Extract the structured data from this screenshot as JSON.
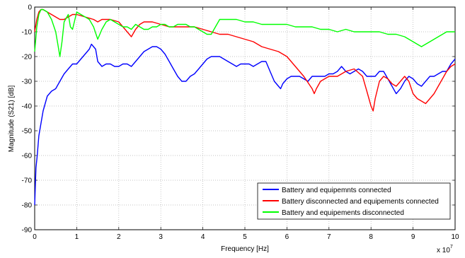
{
  "chart_data": {
    "type": "line",
    "xlabel": "Frequency [Hz]",
    "ylabel": "Magnitude (S21) [dB]",
    "x_multiplier_base": "x 10",
    "x_multiplier_exp": "7",
    "xlim": [
      0,
      10
    ],
    "ylim": [
      -90,
      0
    ],
    "x_ticks": [
      "0",
      "1",
      "2",
      "3",
      "4",
      "5",
      "6",
      "7",
      "8",
      "9",
      "10"
    ],
    "y_ticks": [
      "0",
      "-10",
      "-20",
      "-30",
      "-40",
      "-50",
      "-60",
      "-70",
      "-80",
      "-90"
    ],
    "grid": true,
    "legend_position": "bottom-right",
    "series": [
      {
        "name": "Battery and equipemnts connected",
        "color": "#0000ff",
        "x": [
          0,
          0.03,
          0.06,
          0.1,
          0.15,
          0.2,
          0.3,
          0.4,
          0.5,
          0.6,
          0.7,
          0.8,
          0.9,
          1.0,
          1.1,
          1.2,
          1.3,
          1.35,
          1.45,
          1.5,
          1.6,
          1.7,
          1.8,
          1.9,
          2.0,
          2.1,
          2.2,
          2.3,
          2.4,
          2.5,
          2.6,
          2.7,
          2.8,
          2.9,
          3.0,
          3.1,
          3.2,
          3.3,
          3.4,
          3.5,
          3.6,
          3.7,
          3.8,
          3.9,
          4.0,
          4.1,
          4.2,
          4.3,
          4.4,
          4.5,
          4.6,
          4.7,
          4.8,
          4.9,
          5.0,
          5.1,
          5.2,
          5.3,
          5.4,
          5.5,
          5.6,
          5.7,
          5.8,
          5.85,
          5.9,
          6.0,
          6.1,
          6.2,
          6.3,
          6.4,
          6.5,
          6.6,
          6.7,
          6.8,
          6.9,
          7.0,
          7.1,
          7.2,
          7.3,
          7.4,
          7.5,
          7.6,
          7.7,
          7.8,
          7.9,
          8.0,
          8.1,
          8.2,
          8.3,
          8.4,
          8.5,
          8.6,
          8.7,
          8.8,
          8.9,
          9.0,
          9.1,
          9.2,
          9.3,
          9.4,
          9.5,
          9.6,
          9.7,
          9.8,
          9.9,
          10.0
        ],
        "y": [
          -80,
          -65,
          -60,
          -52,
          -47,
          -42,
          -36,
          -34,
          -33,
          -30,
          -27,
          -25,
          -23,
          -23,
          -21,
          -19,
          -17,
          -15,
          -17,
          -22,
          -24,
          -23,
          -23,
          -24,
          -24,
          -23,
          -23,
          -24,
          -22,
          -20,
          -18,
          -17,
          -16,
          -16,
          -17,
          -19,
          -22,
          -25,
          -28,
          -30,
          -30,
          -28,
          -27,
          -25,
          -23,
          -21,
          -20,
          -20,
          -20,
          -21,
          -22,
          -23,
          -24,
          -23,
          -23,
          -23,
          -24,
          -23,
          -22,
          -22,
          -26,
          -30,
          -32,
          -33,
          -31,
          -29,
          -28,
          -28,
          -28,
          -29,
          -30,
          -28,
          -28,
          -28,
          -28,
          -27,
          -27,
          -26,
          -24,
          -26,
          -27,
          -26,
          -25,
          -26,
          -28,
          -28,
          -28,
          -26,
          -26,
          -29,
          -32,
          -35,
          -33,
          -30,
          -28,
          -29,
          -31,
          -32,
          -30,
          -28,
          -28,
          -27,
          -26,
          -26,
          -23,
          -21
        ]
      },
      {
        "name": "Battery disconnected and equipements connected",
        "color": "#ff0000",
        "x": [
          0,
          0.05,
          0.1,
          0.15,
          0.2,
          0.3,
          0.4,
          0.5,
          0.6,
          0.7,
          0.8,
          0.9,
          1.0,
          1.2,
          1.4,
          1.5,
          1.6,
          1.8,
          2.0,
          2.1,
          2.2,
          2.3,
          2.4,
          2.5,
          2.6,
          2.8,
          3.0,
          3.2,
          3.4,
          3.6,
          3.8,
          4.0,
          4.2,
          4.4,
          4.6,
          4.8,
          5.0,
          5.2,
          5.4,
          5.6,
          5.8,
          6.0,
          6.2,
          6.4,
          6.6,
          6.65,
          6.7,
          6.8,
          7.0,
          7.2,
          7.4,
          7.6,
          7.8,
          7.9,
          8.0,
          8.05,
          8.1,
          8.2,
          8.3,
          8.4,
          8.5,
          8.6,
          8.7,
          8.8,
          8.9,
          9.0,
          9.1,
          9.2,
          9.3,
          9.4,
          9.5,
          9.6,
          9.7,
          9.8,
          9.9,
          10.0
        ],
        "y": [
          -10,
          -5,
          -2,
          -1,
          -1,
          -2,
          -3,
          -4,
          -5,
          -5,
          -4,
          -3,
          -3,
          -4,
          -5,
          -6,
          -5,
          -5,
          -6,
          -8,
          -10,
          -12,
          -9,
          -7,
          -6,
          -6,
          -7,
          -8,
          -8,
          -8,
          -8,
          -9,
          -10,
          -11,
          -11,
          -12,
          -13,
          -14,
          -16,
          -17,
          -18,
          -20,
          -24,
          -28,
          -33,
          -35,
          -33,
          -30,
          -28,
          -28,
          -26,
          -25,
          -28,
          -34,
          -40,
          -42,
          -37,
          -30,
          -28,
          -29,
          -31,
          -32,
          -30,
          -28,
          -30,
          -35,
          -37,
          -38,
          -39,
          -37,
          -35,
          -32,
          -29,
          -26,
          -24,
          -23
        ]
      },
      {
        "name": "Battery and equipements disconnected",
        "color": "#00ff00",
        "x": [
          0,
          0.05,
          0.1,
          0.15,
          0.2,
          0.3,
          0.4,
          0.5,
          0.55,
          0.6,
          0.65,
          0.7,
          0.8,
          0.85,
          0.9,
          1.0,
          1.1,
          1.2,
          1.3,
          1.4,
          1.5,
          1.6,
          1.7,
          1.8,
          1.9,
          2.0,
          2.1,
          2.2,
          2.3,
          2.4,
          2.5,
          2.6,
          2.7,
          2.8,
          2.9,
          3.0,
          3.1,
          3.2,
          3.3,
          3.4,
          3.5,
          3.6,
          3.7,
          3.8,
          3.9,
          4.0,
          4.1,
          4.2,
          4.3,
          4.4,
          4.6,
          4.8,
          5.0,
          5.2,
          5.4,
          5.6,
          5.8,
          6.0,
          6.2,
          6.4,
          6.6,
          6.8,
          7.0,
          7.2,
          7.4,
          7.6,
          7.8,
          8.0,
          8.2,
          8.4,
          8.6,
          8.8,
          9.0,
          9.1,
          9.2,
          9.3,
          9.4,
          9.5,
          9.6,
          9.7,
          9.8,
          9.9,
          10.0
        ],
        "y": [
          -18,
          -8,
          -3,
          -1,
          -1,
          -2,
          -5,
          -10,
          -15,
          -20,
          -14,
          -6,
          -3,
          -8,
          -9,
          -2,
          -3,
          -4,
          -5,
          -8,
          -13,
          -9,
          -6,
          -5,
          -6,
          -7,
          -8,
          -8,
          -9,
          -7,
          -8,
          -9,
          -9,
          -8,
          -8,
          -7,
          -7,
          -8,
          -8,
          -7,
          -7,
          -7,
          -8,
          -8,
          -9,
          -10,
          -11,
          -11,
          -8,
          -5,
          -5,
          -5,
          -6,
          -6,
          -7,
          -7,
          -7,
          -7,
          -8,
          -8,
          -8,
          -9,
          -9,
          -10,
          -9,
          -10,
          -10,
          -10,
          -10,
          -11,
          -11,
          -12,
          -14,
          -15,
          -16,
          -15,
          -14,
          -13,
          -12,
          -11,
          -10,
          -10,
          -10
        ]
      }
    ]
  }
}
